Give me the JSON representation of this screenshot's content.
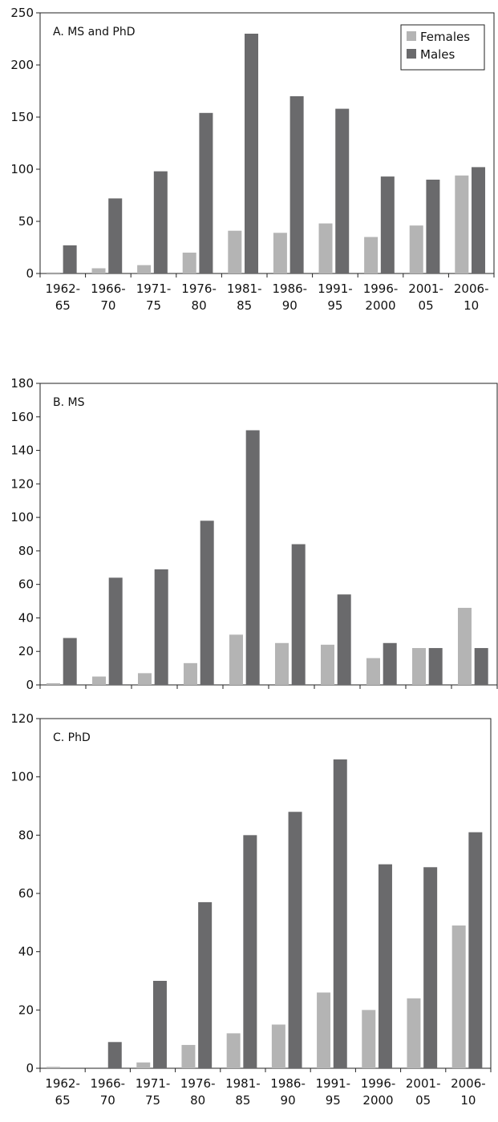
{
  "chart_data": [
    {
      "type": "bar",
      "title": "A. MS and PhD",
      "categories": [
        [
          "1962-",
          "65"
        ],
        [
          "1966-",
          "70"
        ],
        [
          "1971-",
          "75"
        ],
        [
          "1976-",
          "80"
        ],
        [
          "1981-",
          "85"
        ],
        [
          "1986-",
          "90"
        ],
        [
          "1991-",
          "95"
        ],
        [
          "1996-",
          "2000"
        ],
        [
          "2001-",
          "05"
        ],
        [
          "2006-",
          "10"
        ]
      ],
      "ylim": [
        0,
        250
      ],
      "yticks": [
        0,
        50,
        100,
        150,
        200,
        250
      ],
      "legend": "top-right",
      "series": [
        {
          "name": "Females",
          "color": "#b4b4b4",
          "values": [
            1,
            5,
            8,
            20,
            41,
            39,
            48,
            35,
            46,
            94
          ]
        },
        {
          "name": "Males",
          "color": "#6a6a6c",
          "values": [
            27,
            72,
            98,
            154,
            230,
            170,
            158,
            93,
            90,
            102
          ]
        }
      ]
    },
    {
      "type": "bar",
      "title": "B. MS",
      "categories": [
        [
          "1962-",
          "65"
        ],
        [
          "1966-",
          "70"
        ],
        [
          "1971-",
          "75"
        ],
        [
          "1976-",
          "80"
        ],
        [
          "1981-",
          "85"
        ],
        [
          "1986-",
          "90"
        ],
        [
          "1991-",
          "95"
        ],
        [
          "1996-",
          "2000"
        ],
        [
          "2001-",
          "05"
        ],
        [
          "2006-",
          "10"
        ]
      ],
      "ylim": [
        0,
        180
      ],
      "yticks": [
        0,
        20,
        40,
        60,
        80,
        100,
        120,
        140,
        160,
        180
      ],
      "series": [
        {
          "name": "Females",
          "color": "#b4b4b4",
          "values": [
            1,
            5,
            7,
            13,
            30,
            25,
            24,
            16,
            22,
            46
          ]
        },
        {
          "name": "Males",
          "color": "#6a6a6c",
          "values": [
            28,
            64,
            69,
            98,
            152,
            84,
            54,
            25,
            22,
            22
          ]
        }
      ]
    },
    {
      "type": "bar",
      "title": "C. PhD",
      "categories": [
        [
          "1962-",
          "65"
        ],
        [
          "1966-",
          "70"
        ],
        [
          "1971-",
          "75"
        ],
        [
          "1976-",
          "80"
        ],
        [
          "1981-",
          "85"
        ],
        [
          "1986-",
          "90"
        ],
        [
          "1991-",
          "95"
        ],
        [
          "1996-",
          "2000"
        ],
        [
          "2001-",
          "05"
        ],
        [
          "2006-",
          "10"
        ]
      ],
      "ylim": [
        0,
        120
      ],
      "yticks": [
        0,
        20,
        40,
        60,
        80,
        100,
        120
      ],
      "series": [
        {
          "name": "Females",
          "color": "#b4b4b4",
          "values": [
            0.5,
            0,
            2,
            8,
            12,
            15,
            26,
            20,
            24,
            49
          ]
        },
        {
          "name": "Males",
          "color": "#6a6a6c",
          "values": [
            0,
            9,
            30,
            57,
            80,
            88,
            106,
            70,
            69,
            81
          ]
        }
      ]
    }
  ]
}
